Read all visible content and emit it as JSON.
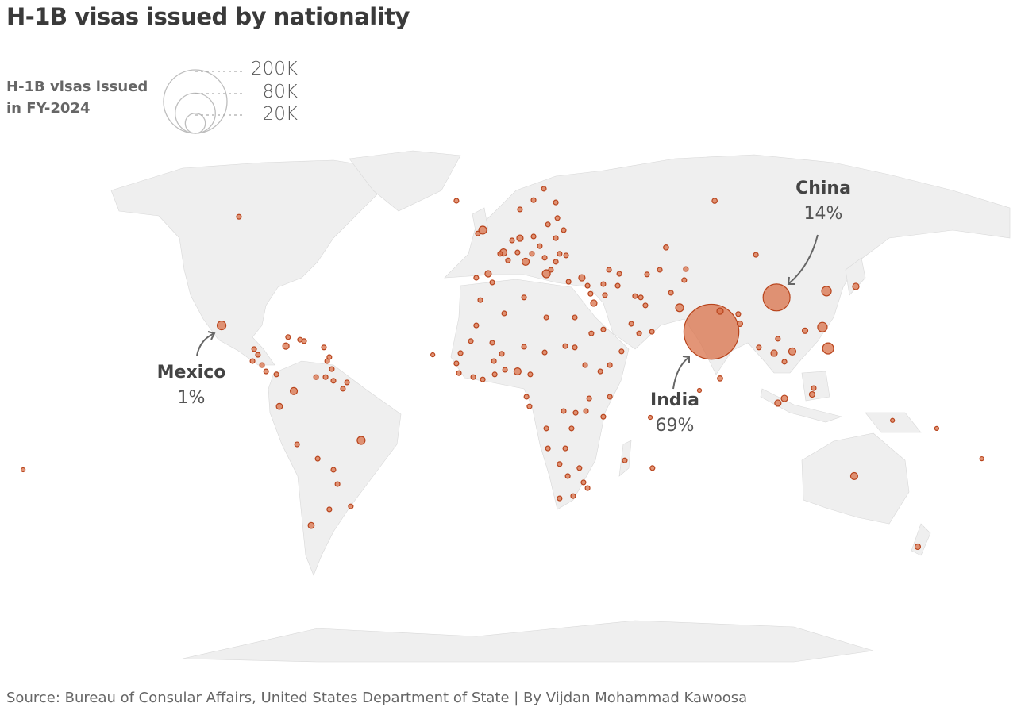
{
  "title": "H-1B visas issued by nationality",
  "legend": {
    "title_line1": "H-1B visas issued",
    "title_line2": "in FY-2024",
    "sizes": [
      {
        "label": "200K",
        "value": 200000
      },
      {
        "label": "80K",
        "value": 80000
      },
      {
        "label": "20K",
        "value": 20000
      }
    ]
  },
  "annotations": {
    "china": {
      "name": "China",
      "share": "14%"
    },
    "india": {
      "name": "India",
      "share": "69%"
    },
    "mexico": {
      "name": "Mexico",
      "share": "1%"
    }
  },
  "source": "Source: Bureau of Consular Affairs, United States Department of State | By Vijdan Mohammad Kawoosa",
  "colors": {
    "land": "#efefef",
    "border": "#9a9a9a",
    "bubble_fill": "#d9714a",
    "bubble_stroke": "#b8441c",
    "text": "#3a3a3a"
  },
  "chart_data": {
    "type": "bubble-map",
    "size_encoding": "H-1B visas issued in FY-2024",
    "default_value": 1100,
    "bubbles_lon_lat_value": [
      [
        81.3,
        17.6,
        150000
      ],
      [
        105.3,
        27.9,
        36000
      ],
      [
        -99.1,
        19.5,
        3800
      ],
      [
        -47.7,
        -15.0,
        3100
      ],
      [
        -92.7,
        52.1,
        1100
      ],
      [
        123.7,
        29.8,
        4500
      ],
      [
        134.5,
        31.2,
        2000
      ],
      [
        122.2,
        19.0,
        4500
      ],
      [
        124.3,
        12.6,
        6000
      ],
      [
        115.8,
        17.9,
        1500
      ],
      [
        111.1,
        11.7,
        2500
      ],
      [
        104.4,
        11.2,
        2000
      ],
      [
        108.2,
        8.6,
        1100
      ],
      [
        105.8,
        15.5,
        1100
      ],
      [
        98.8,
        12.9,
        1100
      ],
      [
        91.8,
        20.0,
        1500
      ],
      [
        91.2,
        22.9,
        1100
      ],
      [
        84.5,
        23.8,
        2000
      ],
      [
        69.6,
        24.8,
        3100
      ],
      [
        66.4,
        29.3,
        1100
      ],
      [
        71.3,
        33.1,
        1100
      ],
      [
        71.9,
        36.4,
        1100
      ],
      [
        62.3,
        36.2,
        1100
      ],
      [
        57.6,
        34.8,
        1100
      ],
      [
        55.3,
        27.9,
        1100
      ],
      [
        64.6,
        42.9,
        1300
      ],
      [
        97.7,
        40.7,
        1100
      ],
      [
        82.5,
        56.9,
        1300
      ],
      [
        59.4,
        17.6,
        1100
      ],
      [
        84.5,
        3.6,
        1300
      ],
      [
        76.9,
        0,
        800
      ],
      [
        58.8,
        -8.1,
        800
      ],
      [
        108.2,
        -2.4,
        2000
      ],
      [
        105.8,
        -3.8,
        2000
      ],
      [
        118.4,
        -1.2,
        1500
      ],
      [
        119.0,
        0.7,
        1100
      ],
      [
        133.9,
        -25.7,
        2500
      ],
      [
        157.3,
        -46.9,
        1500
      ],
      [
        180.9,
        -20.5,
        800
      ],
      [
        -172.2,
        -23.8,
        800
      ],
      [
        164.3,
        -11.4,
        800
      ],
      [
        148.0,
        -9.0,
        800
      ],
      [
        -2.9,
        48.1,
        3100
      ],
      [
        -4.7,
        47.1,
        1100
      ],
      [
        4.7,
        41.4,
        2500
      ],
      [
        10.8,
        45.7,
        2000
      ],
      [
        15.8,
        46.2,
        1100
      ],
      [
        7.9,
        45.0,
        1100
      ],
      [
        12.9,
        38.6,
        2500
      ],
      [
        9.9,
        41.4,
        1100
      ],
      [
        6.4,
        39.0,
        1100
      ],
      [
        3.5,
        41.0,
        1100
      ],
      [
        20.5,
        35.0,
        3100
      ],
      [
        22.2,
        36.2,
        1100
      ],
      [
        24.0,
        38.6,
        1100
      ],
      [
        25.4,
        41.0,
        1100
      ],
      [
        27.8,
        40.5,
        1100
      ],
      [
        24.0,
        45.7,
        1100
      ],
      [
        26.9,
        48.1,
        1100
      ],
      [
        24.6,
        51.7,
        1100
      ],
      [
        24.0,
        56.4,
        1100
      ],
      [
        19.6,
        60.5,
        1100
      ],
      [
        15.8,
        57.1,
        1100
      ],
      [
        10.8,
        54.3,
        1100
      ],
      [
        21.1,
        49.8,
        1100
      ],
      [
        18.1,
        43.3,
        1100
      ],
      [
        15.2,
        41.0,
        1100
      ],
      [
        19.9,
        39.8,
        1100
      ],
      [
        28.7,
        32.6,
        1100
      ],
      [
        33.6,
        33.8,
        2000
      ],
      [
        -0.9,
        35.0,
        2000
      ],
      [
        -5.3,
        33.8,
        1100
      ],
      [
        0.6,
        32.4,
        1100
      ],
      [
        -12.6,
        56.9,
        1100
      ],
      [
        35.7,
        31.4,
        1100
      ],
      [
        43.6,
        36.2,
        1100
      ],
      [
        47.4,
        35.0,
        1100
      ],
      [
        38.0,
        26.2,
        2000
      ],
      [
        36.8,
        29.0,
        1100
      ],
      [
        42.1,
        28.6,
        1100
      ],
      [
        46.8,
        31.4,
        1100
      ],
      [
        41.5,
        31.9,
        1100
      ],
      [
        53.2,
        28.3,
        1100
      ],
      [
        57.0,
        25.5,
        1100
      ],
      [
        51.8,
        20.0,
        1100
      ],
      [
        54.7,
        17.1,
        1100
      ],
      [
        48.2,
        11.7,
        1100
      ],
      [
        41.5,
        18.3,
        1100
      ],
      [
        37.1,
        17.1,
        1100
      ],
      [
        31.0,
        21.9,
        1100
      ],
      [
        31.0,
        12.9,
        1100
      ],
      [
        20.5,
        21.9,
        1100
      ],
      [
        12.3,
        27.9,
        1100
      ],
      [
        5.0,
        23.1,
        1100
      ],
      [
        -3.8,
        27.1,
        1100
      ],
      [
        -5.3,
        19.5,
        1100
      ],
      [
        -7.3,
        14.8,
        1100
      ],
      [
        -11.1,
        11.2,
        1100
      ],
      [
        -12.6,
        8.1,
        1100
      ],
      [
        -11.7,
        5.2,
        1100
      ],
      [
        -6.4,
        4.0,
        1100
      ],
      [
        -2.9,
        3.3,
        1100
      ],
      [
        1.5,
        4.8,
        1100
      ],
      [
        1.2,
        8.8,
        1100
      ],
      [
        5.3,
        6.2,
        1100
      ],
      [
        9.9,
        5.7,
        2500
      ],
      [
        14.6,
        4.8,
        1100
      ],
      [
        12.3,
        13.1,
        1100
      ],
      [
        19.9,
        11.4,
        1100
      ],
      [
        27.5,
        13.3,
        1100
      ],
      [
        34.8,
        7.6,
        1100
      ],
      [
        40.4,
        5.7,
        1100
      ],
      [
        43.9,
        7.6,
        1100
      ],
      [
        43.9,
        -1.9,
        1100
      ],
      [
        36.3,
        -2.4,
        1100
      ],
      [
        35.1,
        -6.2,
        1100
      ],
      [
        41.5,
        -7.9,
        1100
      ],
      [
        26.9,
        -6.2,
        1100
      ],
      [
        31.3,
        -6.7,
        1100
      ],
      [
        13.2,
        -1.9,
        1100
      ],
      [
        14.3,
        -4.8,
        1100
      ],
      [
        20.5,
        -11.4,
        1100
      ],
      [
        29.8,
        -11.4,
        1100
      ],
      [
        21.1,
        -17.4,
        1100
      ],
      [
        27.5,
        -17.4,
        1100
      ],
      [
        25.4,
        -22.1,
        1100
      ],
      [
        32.7,
        -23.3,
        1100
      ],
      [
        28.4,
        -25.7,
        1100
      ],
      [
        34.2,
        -27.6,
        1100
      ],
      [
        30.4,
        -31.7,
        1100
      ],
      [
        25.4,
        -32.4,
        1100
      ],
      [
        35.7,
        -29.3,
        1100
      ],
      [
        49.4,
        -21.0,
        1100
      ],
      [
        59.6,
        -23.3,
        1100
      ],
      [
        -21.3,
        10.7,
        800
      ],
      [
        4.1,
        11.0,
        1100
      ],
      [
        0.6,
        14.3,
        1100
      ],
      [
        -87.1,
        12.4,
        1100
      ],
      [
        -85.7,
        10.7,
        1100
      ],
      [
        -87.7,
        8.8,
        1100
      ],
      [
        -84.2,
        7.6,
        1100
      ],
      [
        -82.7,
        5.7,
        1100
      ],
      [
        -78.9,
        4.8,
        1100
      ],
      [
        -75.4,
        13.3,
        2000
      ],
      [
        -68.7,
        14.8,
        1100
      ],
      [
        -70.2,
        15.2,
        1100
      ],
      [
        -74.6,
        16.0,
        1100
      ],
      [
        -61.4,
        12.9,
        1100
      ],
      [
        -60.2,
        8.8,
        1100
      ],
      [
        -59.4,
        10.0,
        1100
      ],
      [
        -58.5,
        6.4,
        1100
      ],
      [
        -60.8,
        4.0,
        1100
      ],
      [
        -64.3,
        4.0,
        1100
      ],
      [
        -57.9,
        2.9,
        1100
      ],
      [
        -54.4,
        0.5,
        1100
      ],
      [
        -52.9,
        2.4,
        1100
      ],
      [
        -72.5,
        -0.2,
        2500
      ],
      [
        -77.8,
        -4.8,
        1800
      ],
      [
        -71.3,
        -16.2,
        1100
      ],
      [
        -63.7,
        -20.5,
        1100
      ],
      [
        -57.9,
        -23.8,
        1100
      ],
      [
        -56.4,
        -28.1,
        1100
      ],
      [
        -51.5,
        -34.8,
        1100
      ],
      [
        -59.4,
        -35.7,
        1100
      ],
      [
        -66.1,
        -40.5,
        1800
      ]
    ]
  }
}
